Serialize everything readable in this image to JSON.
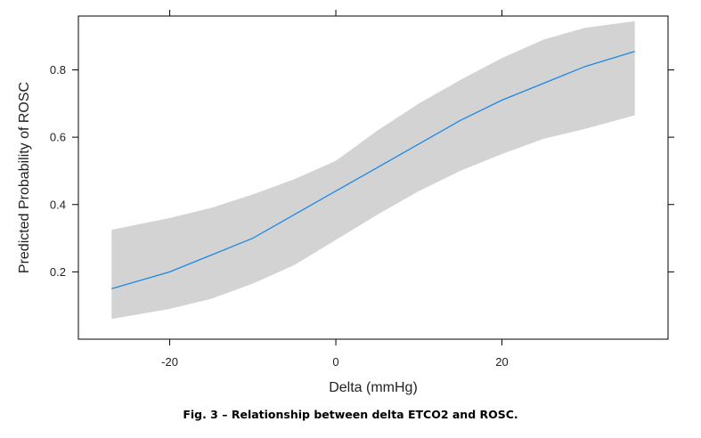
{
  "chart_data": {
    "type": "line",
    "title": "",
    "xlabel": "Delta (mmHg)",
    "ylabel": "Predicted Probability of ROSC",
    "xlim": [
      -31,
      40
    ],
    "ylim": [
      0.0,
      0.96
    ],
    "xticks": [
      -20,
      0,
      20
    ],
    "yticks": [
      0.2,
      0.4,
      0.6,
      0.8
    ],
    "xtick_labels": [
      "-20",
      "0",
      "20"
    ],
    "ytick_labels": [
      "0.2",
      "0.4",
      "0.6",
      "0.8"
    ],
    "grid": false,
    "series": [
      {
        "name": "Predicted probability",
        "color": "#1e88e5",
        "x": [
          -27,
          -20,
          -15,
          -10,
          -5,
          0,
          5,
          10,
          15,
          20,
          25,
          30,
          36
        ],
        "y": [
          0.15,
          0.2,
          0.25,
          0.3,
          0.37,
          0.44,
          0.51,
          0.58,
          0.65,
          0.71,
          0.76,
          0.81,
          0.855
        ]
      }
    ],
    "confidence_band": {
      "color": "#d3d3d3",
      "x": [
        -27,
        -20,
        -15,
        -10,
        -5,
        0,
        5,
        10,
        15,
        20,
        25,
        30,
        36
      ],
      "lower": [
        0.06,
        0.09,
        0.12,
        0.165,
        0.22,
        0.295,
        0.37,
        0.44,
        0.5,
        0.55,
        0.595,
        0.625,
        0.665
      ],
      "upper": [
        0.325,
        0.36,
        0.39,
        0.43,
        0.475,
        0.53,
        0.62,
        0.7,
        0.77,
        0.835,
        0.89,
        0.925,
        0.945
      ]
    }
  },
  "caption": "Fig. 3 – Relationship between delta ETCO2 and ROSC."
}
